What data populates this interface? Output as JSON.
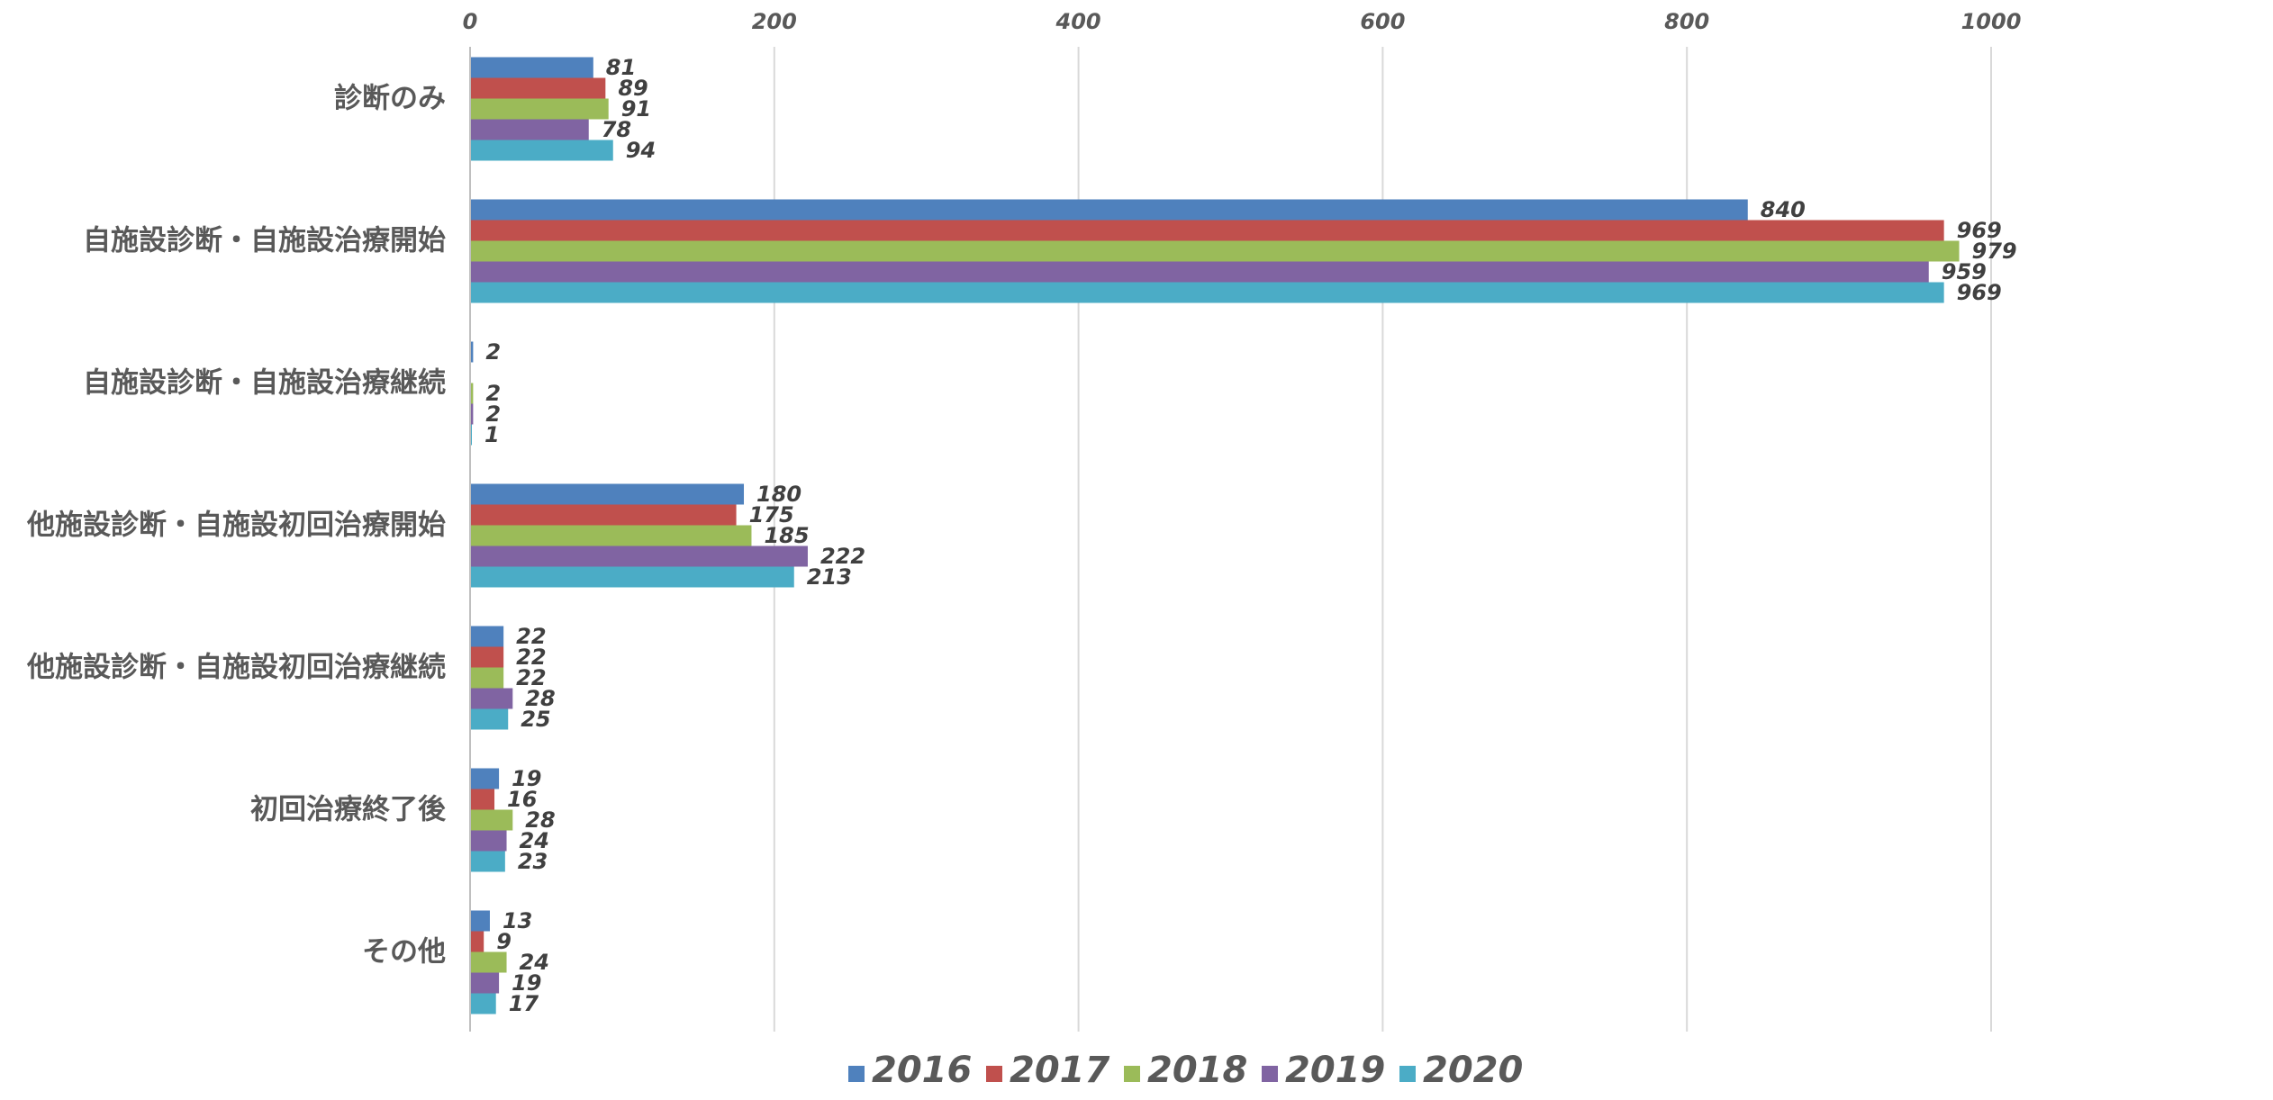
{
  "chart_data": {
    "type": "bar",
    "orientation": "horizontal",
    "title": "",
    "xlabel": "",
    "ylabel": "",
    "xlim": [
      0,
      1000
    ],
    "x_ticks": [
      0,
      200,
      400,
      600,
      800,
      1000
    ],
    "grid": true,
    "legend_position": "bottom",
    "categories": [
      "診断のみ",
      "自施設診断・自施設治療開始",
      "自施設診断・自施設治療継続",
      "他施設診断・自施設初回治療開始",
      "他施設診断・自施設初回治療継続",
      "初回治療終了後",
      "その他"
    ],
    "series": [
      {
        "name": "2016",
        "color": "#4F81BD",
        "values": [
          81,
          840,
          2,
          180,
          22,
          19,
          13
        ]
      },
      {
        "name": "2017",
        "color": "#C0504D",
        "values": [
          89,
          969,
          null,
          175,
          22,
          16,
          9
        ]
      },
      {
        "name": "2018",
        "color": "#9BBB59",
        "values": [
          91,
          979,
          2,
          185,
          22,
          28,
          24
        ]
      },
      {
        "name": "2019",
        "color": "#8064A2",
        "values": [
          78,
          959,
          2,
          222,
          28,
          24,
          19
        ]
      },
      {
        "name": "2020",
        "color": "#4BACC6",
        "values": [
          94,
          969,
          1,
          213,
          25,
          23,
          17
        ]
      }
    ]
  }
}
